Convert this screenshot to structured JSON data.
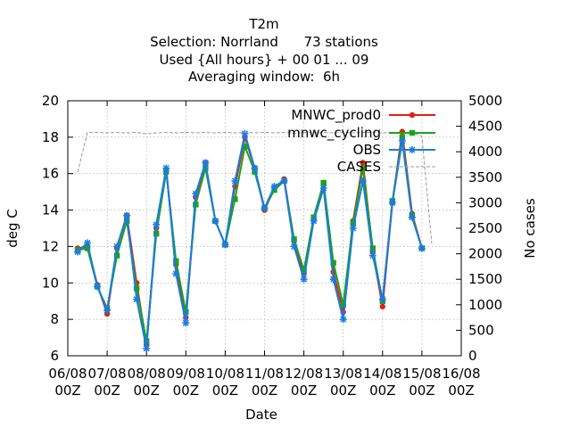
{
  "chart_data": {
    "type": "line",
    "title_lines": [
      "T2m",
      "Selection: Norrland      73 stations",
      "Used {All hours} + 00 01 ... 09",
      "Averaging window:  6h"
    ],
    "xlabel": "Date",
    "ylabel": "deg C",
    "y2label": "No cases",
    "xlim": [
      0,
      10
    ],
    "ylim": [
      6,
      20
    ],
    "y2lim": [
      0,
      5000
    ],
    "x_ticks": [
      {
        "x": 0,
        "label": [
          "06/08",
          "00Z"
        ]
      },
      {
        "x": 1,
        "label": [
          "07/08",
          "00Z"
        ]
      },
      {
        "x": 2,
        "label": [
          "08/08",
          "00Z"
        ]
      },
      {
        "x": 3,
        "label": [
          "09/08",
          "00Z"
        ]
      },
      {
        "x": 4,
        "label": [
          "10/08",
          "00Z"
        ]
      },
      {
        "x": 5,
        "label": [
          "11/08",
          "00Z"
        ]
      },
      {
        "x": 6,
        "label": [
          "12/08",
          "00Z"
        ]
      },
      {
        "x": 7,
        "label": [
          "13/08",
          "00Z"
        ]
      },
      {
        "x": 8,
        "label": [
          "14/08",
          "00Z"
        ]
      },
      {
        "x": 9,
        "label": [
          "15/08",
          "00Z"
        ]
      },
      {
        "x": 10,
        "label": [
          "16/08",
          "00Z"
        ]
      }
    ],
    "y_ticks": [
      6,
      8,
      10,
      12,
      14,
      16,
      18,
      20
    ],
    "y2_ticks": [
      0,
      500,
      1000,
      1500,
      2000,
      2500,
      3000,
      3500,
      4000,
      4500,
      5000
    ],
    "grid": true,
    "legend_position": "top-right",
    "x": [
      0.25,
      0.5,
      0.75,
      1.0,
      1.25,
      1.5,
      1.75,
      2.0,
      2.25,
      2.5,
      2.75,
      3.0,
      3.25,
      3.5,
      3.75,
      4.0,
      4.25,
      4.5,
      4.75,
      5.0,
      5.25,
      5.5,
      5.75,
      6.0,
      6.25,
      6.5,
      6.75,
      7.0,
      7.25,
      7.5,
      7.75,
      8.0,
      8.25,
      8.5,
      8.75,
      9.0,
      9.25
    ],
    "series": [
      {
        "name": "MNWC_prod0",
        "color": "#e51e10",
        "marker": "circle",
        "axis": "y1",
        "values": [
          11.9,
          12.0,
          9.9,
          8.3,
          11.9,
          13.7,
          10.0,
          6.6,
          13.0,
          16.2,
          11.0,
          8.1,
          14.7,
          16.6,
          13.4,
          12.1,
          15.3,
          18.0,
          16.3,
          14.0,
          15.2,
          15.7,
          12.3,
          10.5,
          13.5,
          15.4,
          10.6,
          8.4,
          13.4,
          16.6,
          11.7,
          8.7,
          14.4,
          18.3,
          13.8,
          11.9,
          null
        ]
      },
      {
        "name": "mnwc_cycling",
        "color": "#1aa31a",
        "marker": "square",
        "axis": "y1",
        "values": [
          11.8,
          11.9,
          9.8,
          8.6,
          11.5,
          13.4,
          9.7,
          6.8,
          12.7,
          16.1,
          11.2,
          8.4,
          14.3,
          16.3,
          13.4,
          12.1,
          14.6,
          17.5,
          16.1,
          14.1,
          15.1,
          15.6,
          12.4,
          10.7,
          13.6,
          15.5,
          11.1,
          8.8,
          13.3,
          16.3,
          11.9,
          9.0,
          14.5,
          18.0,
          13.7,
          11.9,
          null
        ]
      },
      {
        "name": "OBS",
        "color": "#1a7be5",
        "marker": "star",
        "axis": "y1",
        "values": [
          11.7,
          12.2,
          9.8,
          8.5,
          12.0,
          13.7,
          9.1,
          6.4,
          13.2,
          16.3,
          10.5,
          7.8,
          14.9,
          16.6,
          13.4,
          12.1,
          15.6,
          18.2,
          16.3,
          14.1,
          15.3,
          15.6,
          12.0,
          10.2,
          13.4,
          15.2,
          10.2,
          8.0,
          13.0,
          15.6,
          11.5,
          9.1,
          14.4,
          17.8,
          13.6,
          11.9,
          null
        ]
      },
      {
        "name": "CASES",
        "color": "#999999",
        "axis": "y2",
        "dashed": true,
        "x": [
          0.25,
          0.5,
          0.75,
          1.0,
          1.25,
          1.5,
          1.75,
          2.0,
          2.25,
          2.5,
          2.75,
          3.0,
          3.25,
          3.5,
          3.75,
          4.0,
          4.25,
          4.5,
          4.75,
          5.0,
          5.25,
          5.5,
          5.75,
          6.0,
          6.25,
          6.5,
          6.75,
          7.0,
          7.25,
          7.5,
          7.75,
          8.0,
          8.25,
          8.5,
          8.75,
          9.0,
          9.25
        ],
        "values": [
          3600,
          4380,
          4380,
          4370,
          4380,
          4370,
          4380,
          4350,
          4370,
          4380,
          4370,
          4380,
          4370,
          4380,
          4370,
          4380,
          4370,
          4380,
          4370,
          4380,
          4370,
          4380,
          4360,
          4380,
          4370,
          4380,
          4370,
          4380,
          4370,
          4380,
          4380,
          4370,
          4380,
          4380,
          4380,
          4300,
          2200
        ]
      }
    ]
  }
}
